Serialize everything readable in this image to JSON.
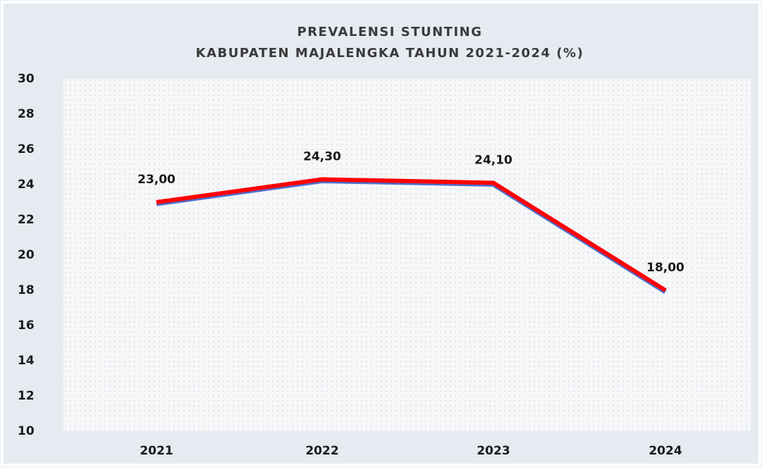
{
  "chart_data": {
    "type": "line",
    "title": "PREVALENSI STUNTING",
    "subtitle": "KABUPATEN MAJALENGKA TAHUN 2021-2024 (%)",
    "categories": [
      "2021",
      "2022",
      "2023",
      "2024"
    ],
    "series": [
      {
        "name": "Prevalensi Stunting",
        "color": "#ff0000",
        "values": [
          23.0,
          24.3,
          24.1,
          18.0
        ],
        "value_labels": [
          "23,00",
          "24,30",
          "24,10",
          "18,00"
        ]
      }
    ],
    "ylim": [
      10,
      30
    ],
    "yticks": [
      10,
      12,
      14,
      16,
      18,
      20,
      22,
      24,
      26,
      28,
      30
    ],
    "grid": false
  }
}
